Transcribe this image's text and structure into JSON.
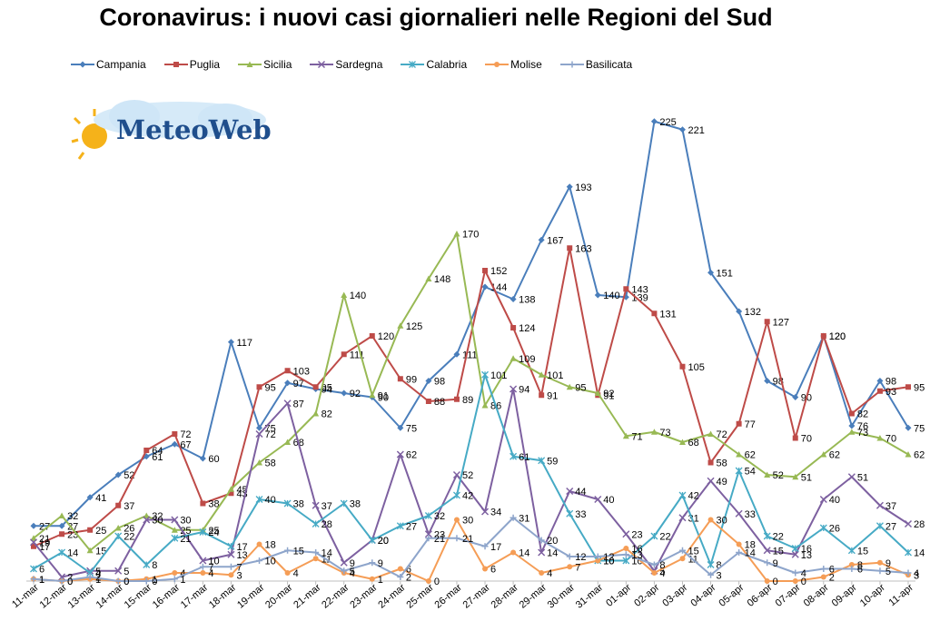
{
  "title": "Coronavirus: i nuovi casi giornalieri nelle Regioni del Sud",
  "logo": {
    "text": "MeteoWeb"
  },
  "chart_data": {
    "type": "line",
    "title": "Coronavirus: i nuovi casi giornalieri nelle Regioni del Sud",
    "xlabel": "",
    "ylabel": "",
    "ylim": [
      0,
      240
    ],
    "grid": false,
    "legend": "top",
    "categories": [
      "11-mar",
      "12-mar",
      "13-mar",
      "14-mar",
      "15-mar",
      "16-mar",
      "17-mar",
      "18-mar",
      "19-mar",
      "20-mar",
      "21-mar",
      "22-mar",
      "23-mar",
      "24-mar",
      "25-mar",
      "26-mar",
      "27-mar",
      "28-mar",
      "29-mar",
      "30-mar",
      "31-mar",
      "01-apr",
      "02-apr",
      "03-apr",
      "04-apr",
      "05-apr",
      "06-apr",
      "07-apr",
      "08-apr",
      "09-apr",
      "10-apr",
      "11-apr"
    ],
    "series": [
      {
        "name": "Campania",
        "color": "#4a7ebb",
        "marker": "diamond",
        "values": [
          27,
          27,
          41,
          52,
          61,
          67,
          60,
          117,
          75,
          97,
          94,
          92,
          90,
          75,
          98,
          111,
          144,
          138,
          167,
          193,
          140,
          139,
          225,
          221,
          151,
          132,
          98,
          90,
          120,
          76,
          98,
          75
        ]
      },
      {
        "name": "Puglia",
        "color": "#be4b48",
        "marker": "square",
        "values": [
          17,
          23,
          25,
          37,
          64,
          72,
          38,
          43,
          95,
          103,
          95,
          111,
          120,
          99,
          88,
          89,
          152,
          124,
          91,
          163,
          91,
          143,
          131,
          105,
          58,
          77,
          127,
          70,
          120,
          82,
          93,
          95
        ]
      },
      {
        "name": "Sicilia",
        "color": "#98b954",
        "marker": "triangle",
        "values": [
          21,
          32,
          15,
          26,
          32,
          25,
          25,
          45,
          58,
          68,
          82,
          140,
          91,
          125,
          148,
          170,
          86,
          109,
          101,
          95,
          92,
          71,
          73,
          68,
          72,
          62,
          52,
          51,
          62,
          73,
          70,
          62
        ]
      },
      {
        "name": "Sardegna",
        "color": "#7d60a0",
        "marker": "x",
        "values": [
          19,
          2,
          5,
          5,
          30,
          30,
          10,
          13,
          72,
          87,
          37,
          9,
          20,
          62,
          23,
          52,
          34,
          94,
          14,
          44,
          40,
          23,
          5,
          31,
          49,
          33,
          15,
          13,
          40,
          51,
          37,
          28
        ]
      },
      {
        "name": "Calabria",
        "color": "#46aac5",
        "marker": "star",
        "values": [
          6,
          14,
          4,
          22,
          8,
          21,
          24,
          17,
          40,
          38,
          28,
          38,
          20,
          27,
          32,
          42,
          101,
          61,
          59,
          33,
          10,
          10,
          22,
          42,
          8,
          54,
          22,
          16,
          26,
          15,
          27,
          14
        ]
      },
      {
        "name": "Molise",
        "color": "#f59d56",
        "marker": "circle",
        "values": [
          1,
          0,
          1,
          0,
          1,
          4,
          4,
          3,
          18,
          4,
          11,
          4,
          1,
          6,
          0,
          30,
          6,
          14,
          4,
          7,
          10,
          16,
          4,
          11,
          30,
          18,
          0,
          0,
          2,
          8,
          9,
          3
        ]
      },
      {
        "name": "Basilicata",
        "color": "#8ea5cb",
        "marker": "plus",
        "values": [
          1,
          0,
          2,
          0,
          0,
          1,
          7,
          7,
          10,
          15,
          14,
          5,
          9,
          2,
          21,
          21,
          17,
          31,
          20,
          12,
          12,
          13,
          8,
          15,
          3,
          14,
          9,
          4,
          6,
          6,
          5,
          4
        ]
      }
    ]
  }
}
